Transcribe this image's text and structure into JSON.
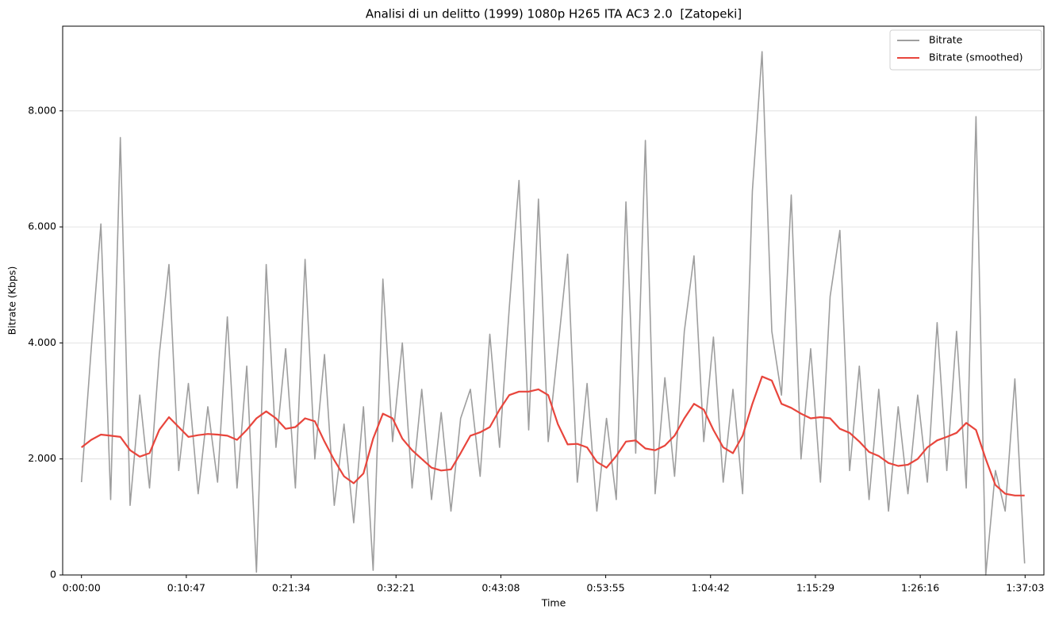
{
  "chart_data": {
    "type": "line",
    "title": "Analisi di un delitto (1999) 1080p H265 ITA AC3 2.0  [Zatopeki]",
    "xlabel": "Time",
    "ylabel": "Bitrate (Kbps)",
    "x": [
      0,
      60,
      120,
      180,
      240,
      300,
      360,
      420,
      480,
      540,
      600,
      660,
      720,
      780,
      840,
      900,
      960,
      1020,
      1080,
      1140,
      1200,
      1260,
      1320,
      1380,
      1440,
      1500,
      1560,
      1620,
      1680,
      1740,
      1800,
      1860,
      1920,
      1980,
      2040,
      2100,
      2160,
      2220,
      2280,
      2340,
      2400,
      2460,
      2520,
      2580,
      2640,
      2700,
      2760,
      2820,
      2880,
      2940,
      3000,
      3060,
      3120,
      3180,
      3240,
      3300,
      3360,
      3420,
      3480,
      3540,
      3600,
      3660,
      3720,
      3780,
      3840,
      3900,
      3960,
      4020,
      4080,
      4140,
      4200,
      4260,
      4320,
      4380,
      4440,
      4500,
      4560,
      4620,
      4680,
      4740,
      4800,
      4860,
      4920,
      4980,
      5040,
      5100,
      5160,
      5220,
      5280,
      5340,
      5400,
      5460,
      5520,
      5580,
      5640,
      5700,
      5760,
      5820
    ],
    "series": [
      {
        "name": "Bitrate",
        "color": "#9e9e9e",
        "values": [
          1600,
          3900,
          6050,
          1300,
          7540,
          1200,
          3100,
          1500,
          3800,
          5350,
          1800,
          3300,
          1400,
          2900,
          1600,
          4450,
          1500,
          3600,
          50,
          5350,
          2200,
          3900,
          1500,
          5440,
          2000,
          3800,
          1200,
          2600,
          900,
          2900,
          80,
          5100,
          2300,
          4000,
          1500,
          3200,
          1300,
          2800,
          1100,
          2700,
          3200,
          1700,
          4150,
          2200,
          4600,
          6800,
          2500,
          6480,
          2300,
          3900,
          5530,
          1600,
          3300,
          1100,
          2700,
          1300,
          6430,
          2100,
          7490,
          1400,
          3400,
          1700,
          4200,
          5500,
          2300,
          4100,
          1600,
          3200,
          1400,
          6620,
          9020,
          4200,
          3100,
          6550,
          2000,
          3900,
          1600,
          4800,
          5940,
          1800,
          3600,
          1300,
          3200,
          1100,
          2900,
          1400,
          3100,
          1600,
          4350,
          1800,
          4200,
          1500,
          7900,
          0,
          1800,
          1100,
          3380,
          200
        ]
      },
      {
        "name": "Bitrate (smoothed)",
        "color": "#e8453c",
        "values": [
          2200,
          2330,
          2420,
          2400,
          2380,
          2150,
          2040,
          2100,
          2500,
          2720,
          2550,
          2380,
          2410,
          2430,
          2420,
          2400,
          2330,
          2500,
          2700,
          2820,
          2700,
          2520,
          2550,
          2700,
          2650,
          2300,
          1980,
          1700,
          1580,
          1750,
          2350,
          2780,
          2700,
          2350,
          2150,
          2000,
          1850,
          1800,
          1820,
          2100,
          2400,
          2460,
          2550,
          2850,
          3100,
          3160,
          3160,
          3200,
          3100,
          2600,
          2250,
          2260,
          2200,
          1950,
          1850,
          2050,
          2300,
          2320,
          2180,
          2150,
          2230,
          2400,
          2700,
          2950,
          2850,
          2500,
          2200,
          2100,
          2400,
          2950,
          3420,
          3350,
          2950,
          2880,
          2780,
          2700,
          2720,
          2700,
          2520,
          2450,
          2300,
          2120,
          2050,
          1930,
          1880,
          1900,
          2000,
          2200,
          2320,
          2380,
          2450,
          2620,
          2500,
          2000,
          1550,
          1400,
          1370,
          1370
        ]
      }
    ],
    "xlim": [
      -116,
      5939
    ],
    "xticks": [
      {
        "value": 0,
        "label": "0:00:00"
      },
      {
        "value": 647,
        "label": "0:10:47"
      },
      {
        "value": 1294,
        "label": "0:21:34"
      },
      {
        "value": 1941,
        "label": "0:32:21"
      },
      {
        "value": 2588,
        "label": "0:43:08"
      },
      {
        "value": 3235,
        "label": "0:53:55"
      },
      {
        "value": 3882,
        "label": "1:04:42"
      },
      {
        "value": 4529,
        "label": "1:15:29"
      },
      {
        "value": 5176,
        "label": "1:26:16"
      },
      {
        "value": 5823,
        "label": "1:37:03"
      }
    ],
    "ylim": [
      0,
      9460
    ],
    "yticks": [
      0,
      {
        "value": 2000,
        "label": "2.000"
      },
      {
        "value": 4000,
        "label": "4.000"
      },
      {
        "value": 6000,
        "label": "6.000"
      },
      {
        "value": 8000,
        "label": "8.000"
      }
    ],
    "grid": true,
    "legend": "upper right"
  }
}
